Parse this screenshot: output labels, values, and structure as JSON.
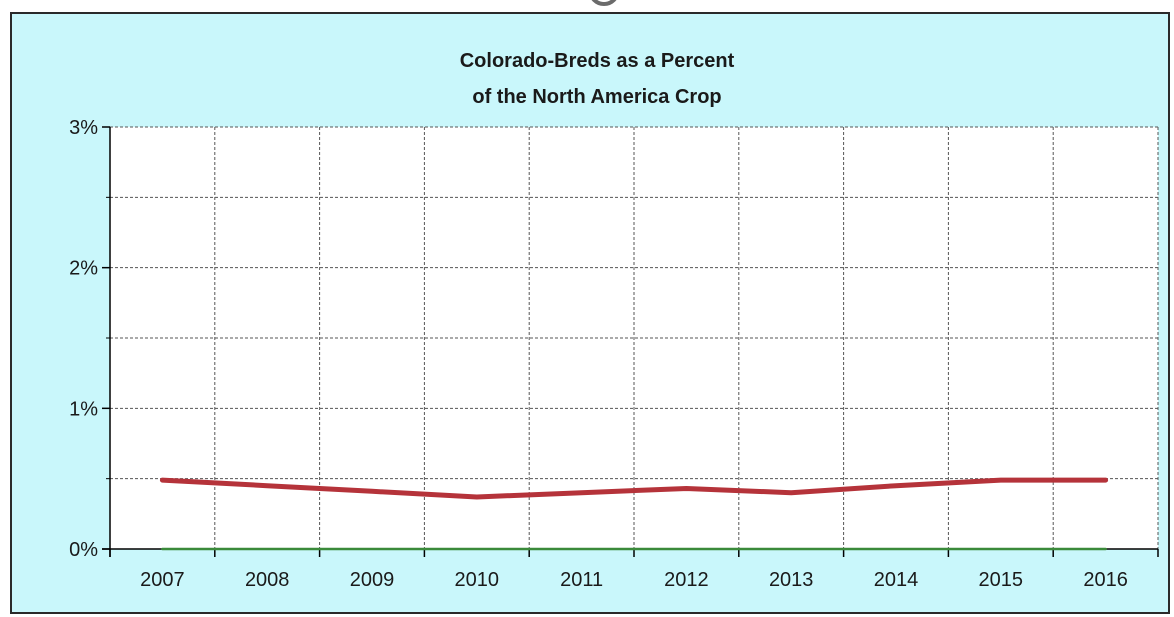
{
  "chart_data": {
    "type": "line",
    "title": "Colorado-Breds as a Percent of the North America Crop",
    "title_lines": [
      "Colorado-Breds as a Percent",
      "of the North America Crop"
    ],
    "xlabel": "",
    "ylabel": "",
    "categories": [
      "2007",
      "2008",
      "2009",
      "2010",
      "2011",
      "2012",
      "2013",
      "2014",
      "2015",
      "2016"
    ],
    "y_ticks": [
      "0%",
      "1%",
      "2%",
      "3%"
    ],
    "ylim": [
      0,
      3
    ],
    "grid": true,
    "legend": "none",
    "series": [
      {
        "color": "#b5333a",
        "values": [
          0.49,
          0.45,
          0.41,
          0.37,
          0.4,
          0.43,
          0.4,
          0.45,
          0.49,
          0.49
        ]
      },
      {
        "color": "#3a8a3a",
        "values": [
          0.0,
          0.0,
          0.0,
          0.0,
          0.0,
          0.0,
          0.0,
          0.0,
          0.0,
          0.0
        ]
      }
    ],
    "colors": {
      "background": "#c9f7fb",
      "plot_area": "#ffffff",
      "grid": "#555555",
      "axis": "#000000"
    }
  }
}
